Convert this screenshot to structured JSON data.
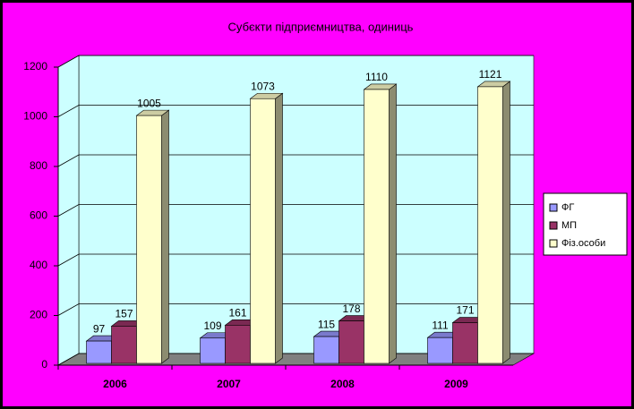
{
  "chart_data": {
    "type": "bar3d",
    "title": "Субєкти підприємництва, одиниць",
    "categories": [
      "2006",
      "2007",
      "2008",
      "2009"
    ],
    "series": [
      {
        "name": "ФГ",
        "color": "#9999ff",
        "values": [
          97,
          109,
          115,
          111
        ]
      },
      {
        "name": "МП",
        "color": "#993366",
        "values": [
          157,
          161,
          178,
          171
        ]
      },
      {
        "name": "Фіз.особи",
        "color": "#ffffcc",
        "values": [
          1005,
          1073,
          1110,
          1121
        ]
      }
    ],
    "ylim": [
      0,
      1200
    ],
    "yticks": [
      0,
      200,
      400,
      600,
      800,
      1000,
      1200
    ],
    "grid": true,
    "legend": "right"
  }
}
